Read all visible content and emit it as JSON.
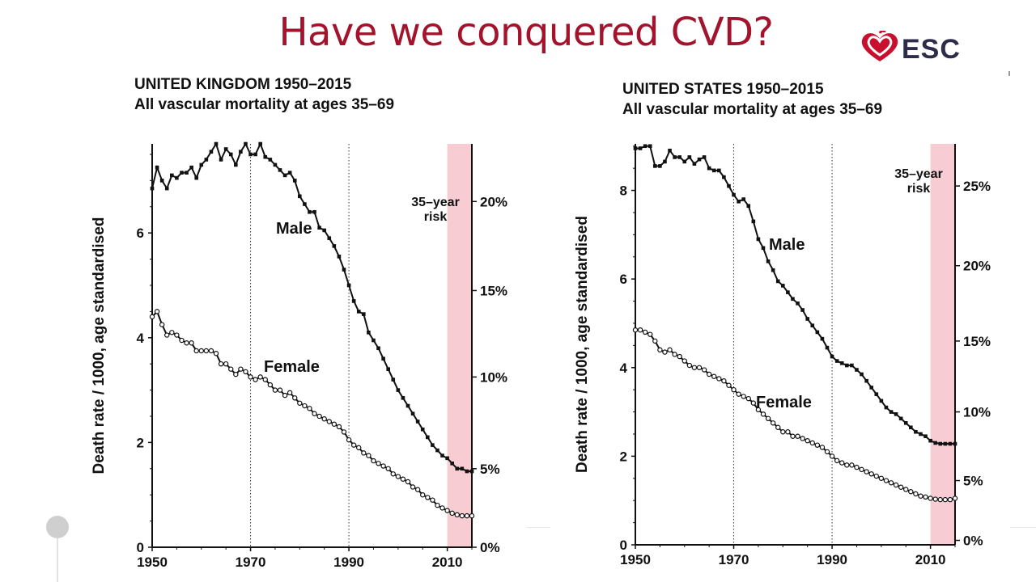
{
  "slide": {
    "title": "Have we conquered CVD?",
    "logo_text": "ESC",
    "logo_icon": "heart-icon",
    "accent_color": "#a3142c"
  },
  "chart_data": [
    {
      "type": "line",
      "title": "UNITED KINGDOM 1950–2015",
      "subtitle": "All vascular mortality at ages 35–69",
      "ylabel": "Death rate / 1000, age standardised",
      "xlim": [
        1950,
        2015
      ],
      "ylim": [
        0,
        7.7
      ],
      "x_ticks": [
        "1950",
        "1970",
        "1990",
        "2010"
      ],
      "y_ticks": [
        "0",
        "2",
        "4",
        "6"
      ],
      "y2_ticks": [
        "0%",
        "5%",
        "10%",
        "15%",
        "20%"
      ],
      "y2_tick_values": [
        0,
        1.5,
        3.25,
        4.9,
        6.6
      ],
      "vlines": [
        1970,
        1990
      ],
      "risk_band": [
        2010,
        2015
      ],
      "risk_label": [
        "35–year",
        "risk"
      ],
      "series": [
        {
          "name": "Male",
          "marker": "square-filled",
          "x": [
            1950,
            1951,
            1952,
            1953,
            1954,
            1955,
            1956,
            1957,
            1958,
            1959,
            1960,
            1961,
            1962,
            1963,
            1964,
            1965,
            1966,
            1967,
            1968,
            1969,
            1970,
            1971,
            1972,
            1973,
            1974,
            1975,
            1976,
            1977,
            1978,
            1979,
            1980,
            1981,
            1982,
            1983,
            1984,
            1985,
            1986,
            1987,
            1988,
            1989,
            1990,
            1991,
            1992,
            1993,
            1994,
            1995,
            1996,
            1997,
            1998,
            1999,
            2000,
            2001,
            2002,
            2003,
            2004,
            2005,
            2006,
            2007,
            2008,
            2009,
            2010,
            2011,
            2012,
            2013,
            2014,
            2015
          ],
          "values": [
            6.85,
            7.25,
            7.0,
            6.85,
            7.1,
            7.05,
            7.15,
            7.15,
            7.25,
            7.05,
            7.3,
            7.4,
            7.55,
            7.7,
            7.4,
            7.6,
            7.5,
            7.3,
            7.55,
            7.7,
            7.5,
            7.5,
            7.7,
            7.45,
            7.4,
            7.3,
            7.2,
            7.1,
            7.15,
            7.0,
            6.7,
            6.55,
            6.4,
            6.4,
            6.1,
            6.05,
            5.9,
            5.75,
            5.55,
            5.3,
            5.0,
            4.7,
            4.5,
            4.45,
            4.1,
            3.95,
            3.8,
            3.6,
            3.4,
            3.2,
            3.0,
            2.85,
            2.7,
            2.55,
            2.4,
            2.25,
            2.1,
            1.95,
            1.85,
            1.75,
            1.7,
            1.6,
            1.5,
            1.5,
            1.45,
            1.45
          ]
        },
        {
          "name": "Female",
          "marker": "circle-open",
          "x": [
            1950,
            1951,
            1952,
            1953,
            1954,
            1955,
            1956,
            1957,
            1958,
            1959,
            1960,
            1961,
            1962,
            1963,
            1964,
            1965,
            1966,
            1967,
            1968,
            1969,
            1970,
            1971,
            1972,
            1973,
            1974,
            1975,
            1976,
            1977,
            1978,
            1979,
            1980,
            1981,
            1982,
            1983,
            1984,
            1985,
            1986,
            1987,
            1988,
            1989,
            1990,
            1991,
            1992,
            1993,
            1994,
            1995,
            1996,
            1997,
            1998,
            1999,
            2000,
            2001,
            2002,
            2003,
            2004,
            2005,
            2006,
            2007,
            2008,
            2009,
            2010,
            2011,
            2012,
            2013,
            2014,
            2015
          ],
          "values": [
            4.4,
            4.5,
            4.25,
            4.05,
            4.1,
            4.05,
            3.95,
            3.9,
            3.9,
            3.75,
            3.75,
            3.75,
            3.75,
            3.7,
            3.5,
            3.5,
            3.4,
            3.3,
            3.4,
            3.35,
            3.25,
            3.2,
            3.25,
            3.2,
            3.1,
            3.0,
            3.0,
            2.9,
            2.95,
            2.85,
            2.75,
            2.7,
            2.65,
            2.55,
            2.5,
            2.45,
            2.4,
            2.35,
            2.3,
            2.2,
            2.05,
            1.95,
            1.9,
            1.8,
            1.75,
            1.65,
            1.6,
            1.55,
            1.5,
            1.4,
            1.35,
            1.3,
            1.25,
            1.15,
            1.1,
            1.0,
            0.95,
            0.9,
            0.8,
            0.75,
            0.7,
            0.65,
            0.62,
            0.6,
            0.6,
            0.6
          ]
        }
      ]
    },
    {
      "type": "line",
      "title": "UNITED STATES 1950–2015",
      "subtitle": "All vascular mortality at ages 35–69",
      "ylabel": "Death rate / 1000, age standardised",
      "xlim": [
        1950,
        2015
      ],
      "ylim": [
        0,
        9.05
      ],
      "x_ticks": [
        "1950",
        "1970",
        "1990",
        "2010"
      ],
      "y_ticks": [
        "0",
        "2",
        "4",
        "6",
        "8"
      ],
      "y2_ticks": [
        "0%",
        "5%",
        "10%",
        "15%",
        "20%",
        "25%"
      ],
      "y2_tick_values": [
        0.1,
        1.45,
        3.0,
        4.6,
        6.3,
        8.1
      ],
      "vlines": [
        1970,
        1990
      ],
      "risk_band": [
        2010,
        2015
      ],
      "risk_label": [
        "35–year",
        "risk"
      ],
      "series": [
        {
          "name": "Male",
          "marker": "square-filled",
          "x": [
            1950,
            1951,
            1952,
            1953,
            1954,
            1955,
            1956,
            1957,
            1958,
            1959,
            1960,
            1961,
            1962,
            1963,
            1964,
            1965,
            1966,
            1967,
            1968,
            1969,
            1970,
            1971,
            1972,
            1973,
            1974,
            1975,
            1976,
            1977,
            1978,
            1979,
            1980,
            1981,
            1982,
            1983,
            1984,
            1985,
            1986,
            1987,
            1988,
            1989,
            1990,
            1991,
            1992,
            1993,
            1994,
            1995,
            1996,
            1997,
            1998,
            1999,
            2000,
            2001,
            2002,
            2003,
            2004,
            2005,
            2006,
            2007,
            2008,
            2009,
            2010,
            2011,
            2012,
            2013,
            2014,
            2015
          ],
          "values": [
            8.95,
            8.95,
            9.0,
            9.0,
            8.55,
            8.55,
            8.65,
            8.9,
            8.75,
            8.75,
            8.65,
            8.75,
            8.6,
            8.7,
            8.75,
            8.5,
            8.45,
            8.45,
            8.3,
            8.1,
            7.9,
            7.75,
            7.8,
            7.65,
            7.3,
            6.9,
            6.7,
            6.4,
            6.2,
            5.95,
            5.85,
            5.7,
            5.55,
            5.45,
            5.3,
            5.1,
            4.95,
            4.8,
            4.65,
            4.45,
            4.25,
            4.15,
            4.1,
            4.05,
            4.05,
            3.95,
            3.85,
            3.7,
            3.55,
            3.4,
            3.25,
            3.1,
            3.0,
            2.95,
            2.85,
            2.75,
            2.65,
            2.55,
            2.5,
            2.45,
            2.35,
            2.3,
            2.28,
            2.28,
            2.28,
            2.28
          ]
        },
        {
          "name": "Female",
          "marker": "circle-open",
          "x": [
            1950,
            1951,
            1952,
            1953,
            1954,
            1955,
            1956,
            1957,
            1958,
            1959,
            1960,
            1961,
            1962,
            1963,
            1964,
            1965,
            1966,
            1967,
            1968,
            1969,
            1970,
            1971,
            1972,
            1973,
            1974,
            1975,
            1976,
            1977,
            1978,
            1979,
            1980,
            1981,
            1982,
            1983,
            1984,
            1985,
            1986,
            1987,
            1988,
            1989,
            1990,
            1991,
            1992,
            1993,
            1994,
            1995,
            1996,
            1997,
            1998,
            1999,
            2000,
            2001,
            2002,
            2003,
            2004,
            2005,
            2006,
            2007,
            2008,
            2009,
            2010,
            2011,
            2012,
            2013,
            2014,
            2015
          ],
          "values": [
            4.85,
            4.85,
            4.8,
            4.75,
            4.6,
            4.4,
            4.35,
            4.4,
            4.3,
            4.25,
            4.15,
            4.05,
            4.0,
            4.0,
            3.95,
            3.85,
            3.8,
            3.75,
            3.7,
            3.6,
            3.5,
            3.4,
            3.35,
            3.3,
            3.2,
            3.05,
            2.95,
            2.85,
            2.75,
            2.65,
            2.55,
            2.55,
            2.45,
            2.45,
            2.4,
            2.35,
            2.3,
            2.25,
            2.2,
            2.1,
            2.0,
            1.9,
            1.85,
            1.8,
            1.8,
            1.75,
            1.7,
            1.65,
            1.6,
            1.55,
            1.5,
            1.45,
            1.4,
            1.35,
            1.3,
            1.25,
            1.2,
            1.15,
            1.1,
            1.08,
            1.05,
            1.03,
            1.02,
            1.02,
            1.02,
            1.05
          ]
        }
      ]
    }
  ]
}
